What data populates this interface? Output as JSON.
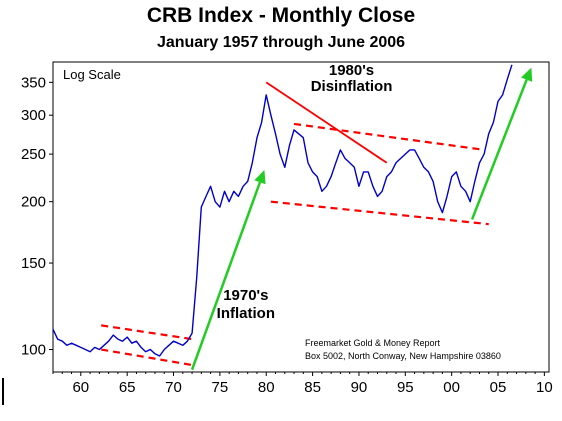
{
  "chart_data": {
    "type": "line",
    "title": "CRB Index - Monthly Close",
    "subtitle": "January 1957 through June 2006",
    "scale_note": "Log Scale",
    "yscale": "log",
    "ylim": [
      90,
      385
    ],
    "xlim": [
      1957,
      2010.5
    ],
    "y_ticks": [
      100,
      150,
      200,
      250,
      300,
      350
    ],
    "x_ticks": [
      {
        "value": 1960,
        "label": "60"
      },
      {
        "value": 1965,
        "label": "65"
      },
      {
        "value": 1970,
        "label": "70"
      },
      {
        "value": 1975,
        "label": "75"
      },
      {
        "value": 1980,
        "label": "80"
      },
      {
        "value": 1985,
        "label": "85"
      },
      {
        "value": 1990,
        "label": "90"
      },
      {
        "value": 1995,
        "label": "95"
      },
      {
        "value": 2000,
        "label": "00"
      },
      {
        "value": 2005,
        "label": "05"
      },
      {
        "value": 2010,
        "label": "10"
      }
    ],
    "grid": false,
    "colors": {
      "series": "#0000cc",
      "channel": "#ff0000",
      "trend_arrow": "#22cc22",
      "disinflation_line": "#ff0000"
    },
    "series": [
      {
        "x": [
          1957.0,
          1957.5,
          1958.0,
          1958.5,
          1959.0,
          1959.5,
          1960.0,
          1960.5,
          1961.0,
          1961.5,
          1962.0,
          1962.5,
          1963.0,
          1963.5,
          1964.0,
          1964.5,
          1965.0,
          1965.5,
          1966.0,
          1966.5,
          1967.0,
          1967.5,
          1968.0,
          1968.5,
          1969.0,
          1969.5,
          1970.0,
          1970.5,
          1971.0,
          1971.5,
          1972.0,
          1972.5,
          1973.0,
          1973.5,
          1974.0,
          1974.5,
          1975.0,
          1975.5,
          1976.0,
          1976.5,
          1977.0,
          1977.5,
          1978.0,
          1978.5,
          1979.0,
          1979.5,
          1980.0,
          1980.5,
          1981.0,
          1981.5,
          1982.0,
          1982.5,
          1983.0,
          1983.5,
          1984.0,
          1984.5,
          1985.0,
          1985.5,
          1986.0,
          1986.5,
          1987.0,
          1987.5,
          1988.0,
          1988.5,
          1989.0,
          1989.5,
          1990.0,
          1990.5,
          1991.0,
          1991.5,
          1992.0,
          1992.5,
          1993.0,
          1993.5,
          1994.0,
          1994.5,
          1995.0,
          1995.5,
          1996.0,
          1996.5,
          1997.0,
          1997.5,
          1998.0,
          1998.5,
          1999.0,
          1999.5,
          2000.0,
          2000.5,
          2001.0,
          2001.5,
          2002.0,
          2002.5,
          2003.0,
          2003.5,
          2004.0,
          2004.5,
          2005.0,
          2005.5,
          2006.0,
          2006.5
        ],
        "values": [
          110,
          105,
          104,
          102,
          103,
          102,
          101,
          100,
          99,
          101,
          100,
          102,
          104,
          107,
          105,
          104,
          106,
          103,
          104,
          101,
          99,
          100,
          98,
          97,
          100,
          102,
          104,
          103,
          102,
          104,
          108,
          140,
          195,
          205,
          215,
          200,
          195,
          210,
          200,
          210,
          205,
          215,
          220,
          240,
          270,
          290,
          330,
          300,
          275,
          250,
          235,
          260,
          280,
          275,
          270,
          240,
          230,
          225,
          210,
          215,
          225,
          240,
          255,
          245,
          240,
          235,
          215,
          230,
          230,
          215,
          205,
          210,
          225,
          230,
          240,
          245,
          250,
          255,
          255,
          245,
          235,
          230,
          220,
          200,
          190,
          205,
          225,
          230,
          215,
          210,
          200,
          220,
          240,
          250,
          275,
          290,
          320,
          330,
          355,
          380
        ]
      }
    ],
    "channels": [
      {
        "segments": [
          [
            [
              1962.2,
              112
            ],
            [
              1972.0,
              105
            ]
          ],
          [
            [
              1962.2,
              100
            ],
            [
              1972.0,
              93
            ]
          ]
        ]
      },
      {
        "segments": [
          [
            [
              1983.0,
              288
            ],
            [
              2003.5,
              255
            ]
          ],
          [
            [
              1980.5,
              200
            ],
            [
              2004.0,
              180
            ]
          ]
        ]
      }
    ],
    "annotations": [
      {
        "text": "1980's",
        "x": 1989.2,
        "y": 362
      },
      {
        "text": "Disinflation",
        "x": 1989.2,
        "y": 336
      },
      {
        "text": "1970's",
        "x": 1977.8,
        "y": 126
      },
      {
        "text": "Inflation",
        "x": 1977.8,
        "y": 116
      }
    ],
    "credit": [
      "Freemarket Gold & Money Report",
      "Box 5002, North Conway, New Hampshire 03860"
    ]
  }
}
